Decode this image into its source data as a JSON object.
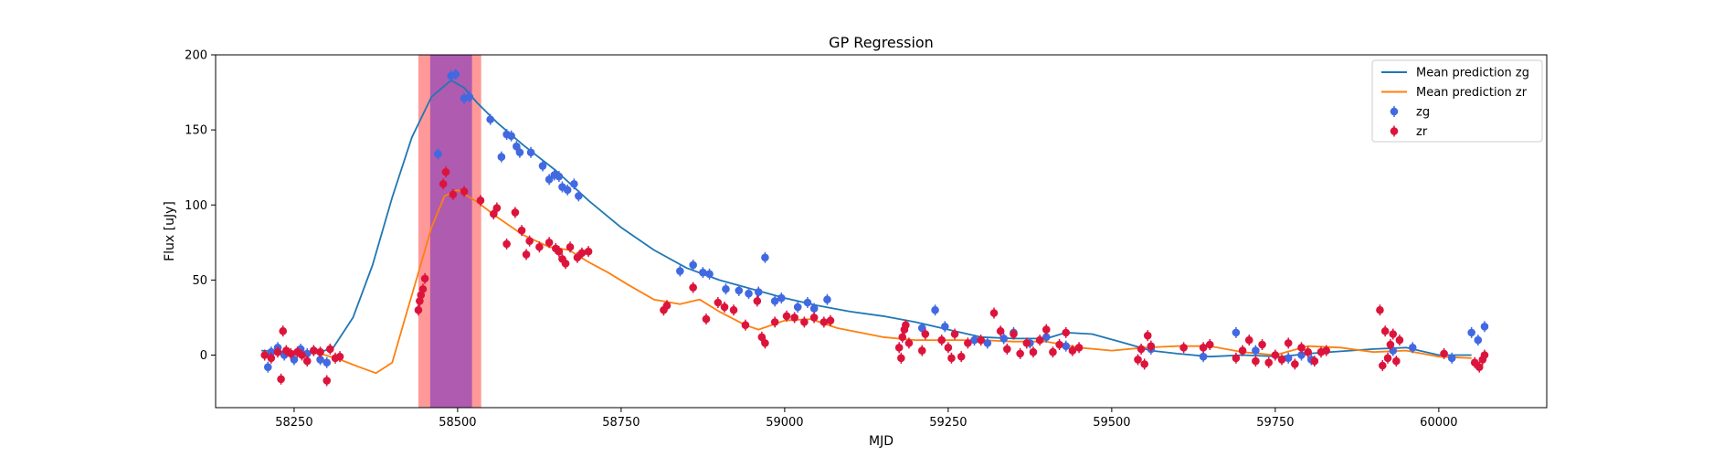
{
  "chart_data": {
    "type": "scatter",
    "title": "GP Regression",
    "xlabel": "MJD",
    "ylabel": "Flux [uJy]",
    "xlim": [
      58130,
      60165
    ],
    "ylim": [
      -35,
      200
    ],
    "xticks": [
      58250,
      58500,
      58750,
      59000,
      59250,
      59500,
      59750,
      60000
    ],
    "yticks": [
      0,
      50,
      100,
      150,
      200
    ],
    "legend": {
      "placement": "top-right",
      "entries": [
        "Mean prediction zg",
        "Mean prediction zr",
        "zg",
        "zr"
      ]
    },
    "colors": {
      "zg_line": "#1f77b4",
      "zr_line": "#ff7f0e",
      "zg_points": "#4169e1",
      "zr_points": "#dc143c",
      "outer_band": "#ff7f7f",
      "inner_band": "#9b59b6"
    },
    "shaded_regions": [
      {
        "x0": 58440,
        "x1": 58536,
        "color": "#ff7f7f"
      },
      {
        "x0": 58458,
        "x1": 58522,
        "color": "#a050b4"
      }
    ],
    "lines": [
      {
        "name": "Mean prediction zg",
        "color": "#1f77b4",
        "points": [
          [
            58200,
            3
          ],
          [
            58250,
            2
          ],
          [
            58290,
            2
          ],
          [
            58310,
            5
          ],
          [
            58340,
            25
          ],
          [
            58370,
            60
          ],
          [
            58400,
            105
          ],
          [
            58430,
            145
          ],
          [
            58460,
            172
          ],
          [
            58490,
            183
          ],
          [
            58510,
            178
          ],
          [
            58530,
            168
          ],
          [
            58560,
            155
          ],
          [
            58600,
            140
          ],
          [
            58650,
            123
          ],
          [
            58700,
            103
          ],
          [
            58750,
            85
          ],
          [
            58800,
            70
          ],
          [
            58850,
            58
          ],
          [
            58900,
            50
          ],
          [
            58950,
            44
          ],
          [
            59000,
            38
          ],
          [
            59050,
            33
          ],
          [
            59100,
            29
          ],
          [
            59150,
            26
          ],
          [
            59200,
            22
          ],
          [
            59250,
            17
          ],
          [
            59300,
            12
          ],
          [
            59350,
            11
          ],
          [
            59400,
            11
          ],
          [
            59430,
            15
          ],
          [
            59470,
            14
          ],
          [
            59520,
            8
          ],
          [
            59560,
            3
          ],
          [
            59600,
            1
          ],
          [
            59650,
            -1
          ],
          [
            59700,
            0
          ],
          [
            59760,
            -1
          ],
          [
            59800,
            1
          ],
          [
            59900,
            4
          ],
          [
            59950,
            5
          ],
          [
            60000,
            0
          ],
          [
            60050,
            0
          ]
        ]
      },
      {
        "name": "Mean prediction zr",
        "color": "#ff7f0e",
        "points": [
          [
            58200,
            0
          ],
          [
            58250,
            2
          ],
          [
            58290,
            1
          ],
          [
            58320,
            -3
          ],
          [
            58350,
            -8
          ],
          [
            58375,
            -12
          ],
          [
            58400,
            -5
          ],
          [
            58420,
            25
          ],
          [
            58440,
            55
          ],
          [
            58460,
            85
          ],
          [
            58480,
            106
          ],
          [
            58500,
            110
          ],
          [
            58530,
            102
          ],
          [
            58560,
            92
          ],
          [
            58600,
            80
          ],
          [
            58640,
            72
          ],
          [
            58670,
            70
          ],
          [
            58700,
            62
          ],
          [
            58730,
            55
          ],
          [
            58760,
            47
          ],
          [
            58800,
            37
          ],
          [
            58840,
            34
          ],
          [
            58870,
            37
          ],
          [
            58900,
            29
          ],
          [
            58940,
            20
          ],
          [
            58960,
            17
          ],
          [
            59000,
            23
          ],
          [
            59040,
            24
          ],
          [
            59080,
            18
          ],
          [
            59150,
            12
          ],
          [
            59200,
            10
          ],
          [
            59250,
            10
          ],
          [
            59300,
            10
          ],
          [
            59350,
            9
          ],
          [
            59400,
            9
          ],
          [
            59450,
            5
          ],
          [
            59500,
            3
          ],
          [
            59550,
            5
          ],
          [
            59600,
            6
          ],
          [
            59650,
            6
          ],
          [
            59700,
            2
          ],
          [
            59750,
            0
          ],
          [
            59800,
            6
          ],
          [
            59850,
            5
          ],
          [
            59900,
            2
          ],
          [
            59950,
            3
          ],
          [
            60000,
            -1
          ],
          [
            60050,
            -2
          ]
        ]
      }
    ],
    "series": [
      {
        "name": "zg",
        "color": "#4169e1",
        "points": [
          [
            58210,
            -8
          ],
          [
            58215,
            2
          ],
          [
            58225,
            5
          ],
          [
            58235,
            0
          ],
          [
            58250,
            -3
          ],
          [
            58260,
            4
          ],
          [
            58270,
            1
          ],
          [
            58280,
            3
          ],
          [
            58290,
            -3
          ],
          [
            58300,
            -5
          ],
          [
            58470,
            134
          ],
          [
            58490,
            186
          ],
          [
            58497,
            187
          ],
          [
            58510,
            171
          ],
          [
            58518,
            172
          ],
          [
            58550,
            157
          ],
          [
            58567,
            132
          ],
          [
            58575,
            147
          ],
          [
            58582,
            146
          ],
          [
            58590,
            139
          ],
          [
            58595,
            135
          ],
          [
            58612,
            135
          ],
          [
            58630,
            126
          ],
          [
            58640,
            117
          ],
          [
            58648,
            120
          ],
          [
            58655,
            119
          ],
          [
            58660,
            112
          ],
          [
            58668,
            110
          ],
          [
            58678,
            114
          ],
          [
            58685,
            106
          ],
          [
            58840,
            56
          ],
          [
            58860,
            60
          ],
          [
            58875,
            55
          ],
          [
            58885,
            54
          ],
          [
            58910,
            44
          ],
          [
            58930,
            43
          ],
          [
            58945,
            41
          ],
          [
            58960,
            42
          ],
          [
            58970,
            65
          ],
          [
            58985,
            36
          ],
          [
            58995,
            38
          ],
          [
            59020,
            32
          ],
          [
            59035,
            35
          ],
          [
            59045,
            31
          ],
          [
            59065,
            37
          ],
          [
            59210,
            18
          ],
          [
            59230,
            30
          ],
          [
            59245,
            19
          ],
          [
            59290,
            10
          ],
          [
            59310,
            8
          ],
          [
            59335,
            11
          ],
          [
            59350,
            15
          ],
          [
            59375,
            8
          ],
          [
            59400,
            12
          ],
          [
            59430,
            6
          ],
          [
            59560,
            4
          ],
          [
            59640,
            -1
          ],
          [
            59690,
            15
          ],
          [
            59720,
            3
          ],
          [
            59770,
            -2
          ],
          [
            59790,
            0
          ],
          [
            59805,
            -3
          ],
          [
            59930,
            3
          ],
          [
            59960,
            5
          ],
          [
            60020,
            -2
          ],
          [
            60050,
            15
          ],
          [
            60060,
            10
          ],
          [
            60070,
            19
          ]
        ]
      },
      {
        "name": "zr",
        "color": "#dc143c",
        "points": [
          [
            58205,
            0
          ],
          [
            58215,
            -2
          ],
          [
            58225,
            2
          ],
          [
            58230,
            -16
          ],
          [
            58233,
            16
          ],
          [
            58238,
            3
          ],
          [
            58245,
            1
          ],
          [
            58255,
            2
          ],
          [
            58262,
            0
          ],
          [
            58270,
            -4
          ],
          [
            58280,
            3
          ],
          [
            58290,
            2
          ],
          [
            58300,
            -17
          ],
          [
            58305,
            4
          ],
          [
            58313,
            -2
          ],
          [
            58320,
            -1
          ],
          [
            58440,
            30
          ],
          [
            58442,
            36
          ],
          [
            58444,
            40
          ],
          [
            58447,
            44
          ],
          [
            58450,
            51
          ],
          [
            58478,
            114
          ],
          [
            58482,
            122
          ],
          [
            58493,
            107
          ],
          [
            58510,
            109
          ],
          [
            58535,
            103
          ],
          [
            58555,
            94
          ],
          [
            58560,
            98
          ],
          [
            58575,
            74
          ],
          [
            58588,
            95
          ],
          [
            58598,
            83
          ],
          [
            58605,
            67
          ],
          [
            58610,
            76
          ],
          [
            58625,
            72
          ],
          [
            58640,
            75
          ],
          [
            58650,
            71
          ],
          [
            58655,
            69
          ],
          [
            58660,
            64
          ],
          [
            58665,
            61
          ],
          [
            58672,
            72
          ],
          [
            58683,
            65
          ],
          [
            58690,
            68
          ],
          [
            58700,
            69
          ],
          [
            58815,
            30
          ],
          [
            58820,
            33
          ],
          [
            58860,
            45
          ],
          [
            58880,
            24
          ],
          [
            58898,
            35
          ],
          [
            58908,
            32
          ],
          [
            58922,
            30
          ],
          [
            58940,
            20
          ],
          [
            58958,
            36
          ],
          [
            58965,
            12
          ],
          [
            58970,
            8
          ],
          [
            58985,
            22
          ],
          [
            59003,
            26
          ],
          [
            59015,
            25
          ],
          [
            59030,
            22
          ],
          [
            59045,
            25
          ],
          [
            59060,
            22
          ],
          [
            59070,
            23
          ],
          [
            59175,
            5
          ],
          [
            59178,
            -2
          ],
          [
            59180,
            12
          ],
          [
            59183,
            17
          ],
          [
            59185,
            20
          ],
          [
            59190,
            8
          ],
          [
            59210,
            3
          ],
          [
            59215,
            14
          ],
          [
            59240,
            10
          ],
          [
            59250,
            5
          ],
          [
            59255,
            -2
          ],
          [
            59260,
            14
          ],
          [
            59270,
            -1
          ],
          [
            59280,
            8
          ],
          [
            59300,
            10
          ],
          [
            59320,
            28
          ],
          [
            59330,
            16
          ],
          [
            59340,
            4
          ],
          [
            59350,
            14
          ],
          [
            59360,
            1
          ],
          [
            59370,
            8
          ],
          [
            59380,
            2
          ],
          [
            59390,
            10
          ],
          [
            59400,
            17
          ],
          [
            59410,
            2
          ],
          [
            59420,
            7
          ],
          [
            59430,
            15
          ],
          [
            59440,
            3
          ],
          [
            59450,
            5
          ],
          [
            59540,
            -3
          ],
          [
            59545,
            4
          ],
          [
            59550,
            -6
          ],
          [
            59555,
            13
          ],
          [
            59560,
            6
          ],
          [
            59610,
            5
          ],
          [
            59640,
            5
          ],
          [
            59650,
            7
          ],
          [
            59690,
            -2
          ],
          [
            59700,
            3
          ],
          [
            59710,
            10
          ],
          [
            59720,
            -4
          ],
          [
            59730,
            7
          ],
          [
            59740,
            -5
          ],
          [
            59750,
            0
          ],
          [
            59760,
            -3
          ],
          [
            59770,
            8
          ],
          [
            59780,
            -6
          ],
          [
            59790,
            5
          ],
          [
            59800,
            2
          ],
          [
            59810,
            -4
          ],
          [
            59820,
            2
          ],
          [
            59828,
            3
          ],
          [
            59910,
            30
          ],
          [
            59914,
            -7
          ],
          [
            59918,
            16
          ],
          [
            59922,
            -2
          ],
          [
            59926,
            7
          ],
          [
            59930,
            14
          ],
          [
            59935,
            -4
          ],
          [
            59940,
            10
          ],
          [
            60008,
            1
          ],
          [
            60055,
            -5
          ],
          [
            60062,
            -8
          ],
          [
            60067,
            -3
          ],
          [
            60070,
            0
          ]
        ]
      }
    ]
  }
}
